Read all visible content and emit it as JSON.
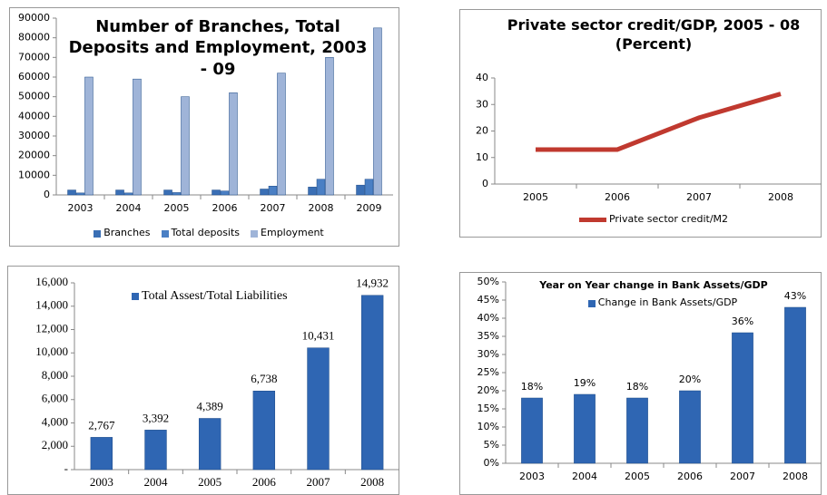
{
  "chart_data": [
    {
      "type": "bar",
      "title": "Number of Branches, Total Deposits and Employment, 2003 - 09",
      "categories": [
        "2003",
        "2004",
        "2005",
        "2006",
        "2007",
        "2008",
        "2009"
      ],
      "series": [
        {
          "name": "Branches",
          "color": "#3a6fb5",
          "values": [
            2500,
            2500,
            2500,
            2500,
            3000,
            4000,
            5000
          ]
        },
        {
          "name": "Total deposits",
          "color": "#4a7fc4",
          "values": [
            1000,
            1000,
            1200,
            2000,
            4500,
            8000,
            8000
          ]
        },
        {
          "name": "Employment",
          "color": "#9fb4d8",
          "values": [
            60000,
            59000,
            50000,
            52000,
            62000,
            70000,
            85000
          ]
        }
      ],
      "ylim": [
        0,
        90000
      ],
      "yticks": [
        0,
        10000,
        20000,
        30000,
        40000,
        50000,
        60000,
        70000,
        80000,
        90000
      ]
    },
    {
      "type": "line",
      "title": "Private sector credit/GDP, 2005 - 08 (Percent)",
      "categories": [
        "2005",
        "2006",
        "2007",
        "2008"
      ],
      "series": [
        {
          "name": "Private sector credit/M2",
          "color": "#c0392f",
          "values": [
            13,
            13,
            25,
            34
          ]
        }
      ],
      "ylim": [
        0,
        40
      ],
      "yticks": [
        0,
        10,
        20,
        30,
        40
      ]
    },
    {
      "type": "bar",
      "categories": [
        "2003",
        "2004",
        "2005",
        "2006",
        "2007",
        "2008"
      ],
      "series": [
        {
          "name": "Total Assest/Total Liabilities",
          "color": "#2f66b3",
          "values": [
            2767,
            3392,
            4389,
            6738,
            10431,
            14932
          ],
          "value_labels": [
            "2,767",
            "3,392",
            "4,389",
            "6,738",
            "10,431",
            "14,932"
          ]
        }
      ],
      "ylim": [
        0,
        16000
      ],
      "yticks": [
        {
          "value": 0,
          "label": "-"
        },
        {
          "value": 2000,
          "label": "2,000"
        },
        {
          "value": 4000,
          "label": "4,000"
        },
        {
          "value": 6000,
          "label": "6,000"
        },
        {
          "value": 8000,
          "label": "8,000"
        },
        {
          "value": 10000,
          "label": "10,000"
        },
        {
          "value": 12000,
          "label": "12,000"
        },
        {
          "value": 14000,
          "label": "14,000"
        },
        {
          "value": 16000,
          "label": "16,000"
        }
      ]
    },
    {
      "type": "bar",
      "title": "Year on Year change in Bank Assets/GDP",
      "categories": [
        "2003",
        "2004",
        "2005",
        "2006",
        "2007",
        "2008"
      ],
      "series": [
        {
          "name": "Change in Bank Assets/GDP",
          "color": "#2f66b3",
          "values": [
            18,
            19,
            18,
            20,
            36,
            43
          ],
          "value_labels": [
            "18%",
            "19%",
            "18%",
            "20%",
            "36%",
            "43%"
          ]
        }
      ],
      "ylim": [
        0,
        50
      ],
      "yticks": [
        {
          "value": 0,
          "label": "0%"
        },
        {
          "value": 5,
          "label": "5%"
        },
        {
          "value": 10,
          "label": "10%"
        },
        {
          "value": 15,
          "label": "15%"
        },
        {
          "value": 20,
          "label": "20%"
        },
        {
          "value": 25,
          "label": "25%"
        },
        {
          "value": 30,
          "label": "30%"
        },
        {
          "value": 35,
          "label": "35%"
        },
        {
          "value": 40,
          "label": "40%"
        },
        {
          "value": 45,
          "label": "45%"
        },
        {
          "value": 50,
          "label": "50%"
        }
      ]
    }
  ]
}
